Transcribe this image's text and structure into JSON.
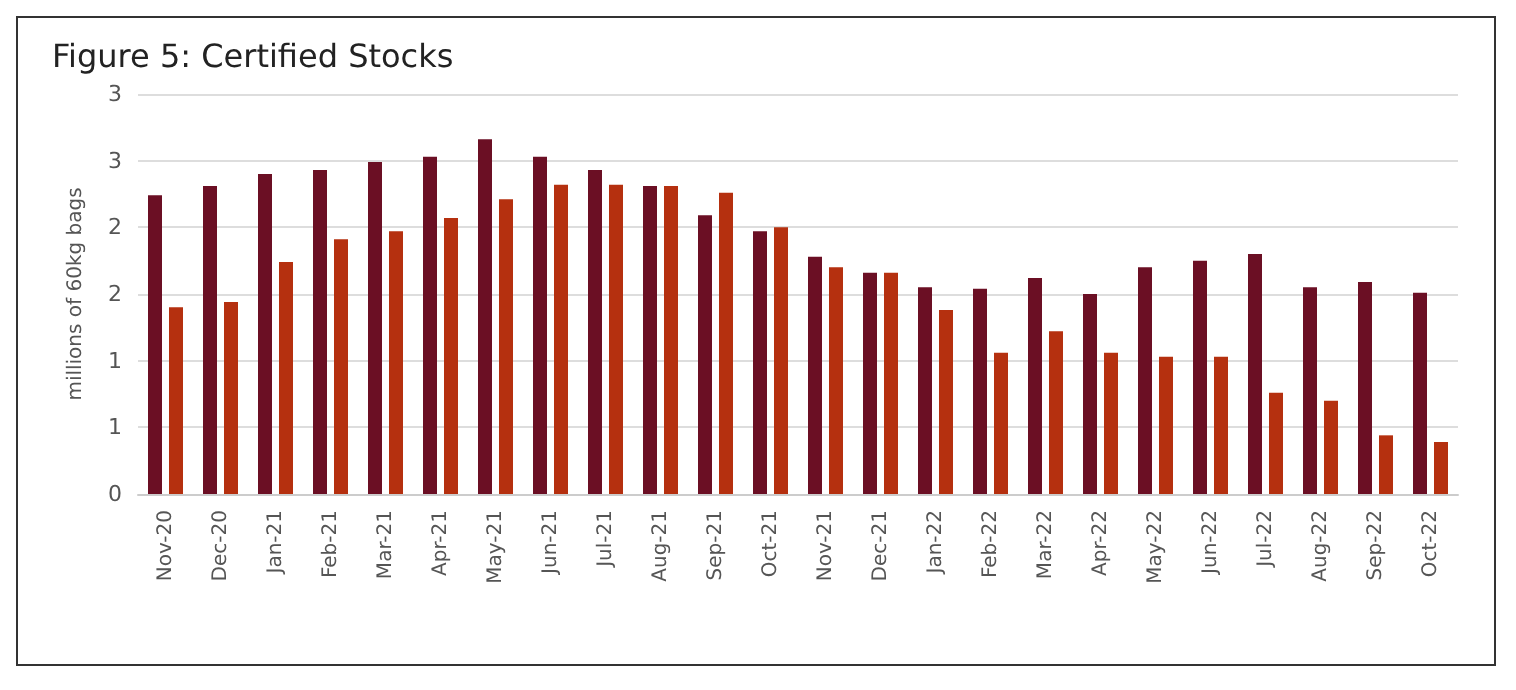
{
  "chart_data": {
    "type": "bar",
    "title": "Figure 5: Certified Stocks",
    "ylabel": "millions of 60kg bags",
    "categories": [
      "Nov-20",
      "Dec-20",
      "Jan-21",
      "Feb-21",
      "Mar-21",
      "Apr-21",
      "May-21",
      "Jun-21",
      "Jul-21",
      "Aug-21",
      "Sep-21",
      "Oct-21",
      "Nov-21",
      "Dec-21",
      "Jan-22",
      "Feb-22",
      "Mar-22",
      "Apr-22",
      "May-22",
      "Jun-22",
      "Jul-22",
      "Aug-22",
      "Sep-22",
      "Oct-22"
    ],
    "series": [
      {
        "color": "#6b0f24",
        "values": [
          2.24,
          2.31,
          2.4,
          2.43,
          2.49,
          2.53,
          2.66,
          2.53,
          2.43,
          2.31,
          2.09,
          1.97,
          1.78,
          1.66,
          1.55,
          1.54,
          1.62,
          1.5,
          1.7,
          1.75,
          1.8,
          1.55,
          1.59,
          1.51
        ]
      },
      {
        "color": "#b5300f",
        "values": [
          1.4,
          1.44,
          1.74,
          1.91,
          1.97,
          2.07,
          2.21,
          2.32,
          2.32,
          2.31,
          2.26,
          2.0,
          1.7,
          1.66,
          1.38,
          1.06,
          1.22,
          1.06,
          1.03,
          1.03,
          0.76,
          0.7,
          0.44,
          0.39
        ]
      }
    ],
    "ylim": [
      0,
      3
    ],
    "yticks": [
      0,
      {
        "value": 0.5,
        "label": "1"
      },
      1,
      {
        "value": 1.5,
        "label": "2"
      },
      2,
      {
        "value": 2.5,
        "label": "3"
      },
      3
    ],
    "grid": "y"
  }
}
